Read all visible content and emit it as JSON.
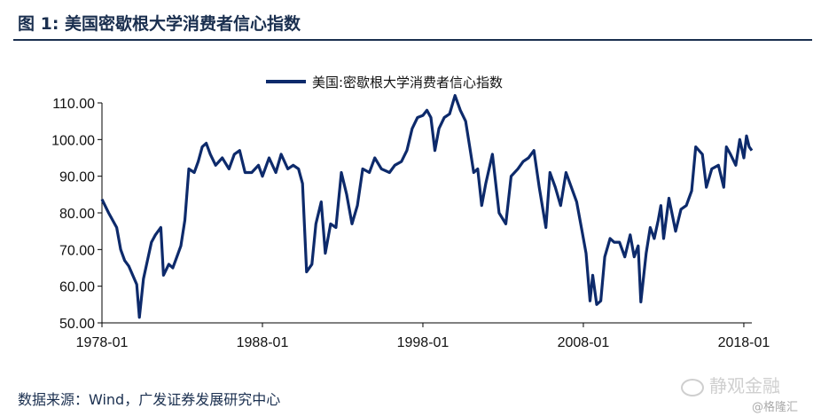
{
  "header": {
    "title": "图 1:  美国密歇根大学消费者信心指数"
  },
  "footer": {
    "source": "数据来源：Wind，广发证券发展研究中心"
  },
  "watermark": {
    "brand": "静观金融",
    "site": "@格隆汇",
    "icon": "wechat-icon"
  },
  "colors": {
    "line": "#0d2a6b",
    "title": "#1a2f4f",
    "axis": "#000000"
  },
  "chart_data": {
    "type": "line",
    "title": "",
    "xlabel": "",
    "ylabel": "",
    "x_ticks": [
      "1978-01",
      "1988-01",
      "1998-01",
      "2008-01",
      "2018-01"
    ],
    "y_ticks": [
      "50.00",
      "60.00",
      "70.00",
      "80.00",
      "90.00",
      "100.00",
      "110.00"
    ],
    "ylim": [
      50,
      110
    ],
    "xlim": [
      "1978-01",
      "2018-07"
    ],
    "legend": {
      "position": "top-center"
    },
    "grid": false,
    "series": [
      {
        "name": "美国:密歇根大学消费者信心指数",
        "points": [
          [
            "1978-01",
            83.7
          ],
          [
            "1978-06",
            80.0
          ],
          [
            "1978-12",
            76.0
          ],
          [
            "1979-03",
            70.0
          ],
          [
            "1979-06",
            67.0
          ],
          [
            "1979-09",
            65.5
          ],
          [
            "1979-12",
            63.0
          ],
          [
            "1980-03",
            60.5
          ],
          [
            "1980-05",
            51.5
          ],
          [
            "1980-08",
            62.0
          ],
          [
            "1980-11",
            67.0
          ],
          [
            "1981-02",
            72.0
          ],
          [
            "1981-05",
            74.0
          ],
          [
            "1981-09",
            76.0
          ],
          [
            "1981-11",
            63.0
          ],
          [
            "1982-03",
            66.0
          ],
          [
            "1982-06",
            65.0
          ],
          [
            "1982-09",
            68.0
          ],
          [
            "1982-12",
            71.0
          ],
          [
            "1983-03",
            78.0
          ],
          [
            "1983-06",
            92.0
          ],
          [
            "1983-10",
            91.0
          ],
          [
            "1984-01",
            94.0
          ],
          [
            "1984-04",
            98.0
          ],
          [
            "1984-07",
            99.0
          ],
          [
            "1984-10",
            96.0
          ],
          [
            "1985-02",
            93.0
          ],
          [
            "1985-07",
            95.0
          ],
          [
            "1985-12",
            92.0
          ],
          [
            "1986-04",
            96.0
          ],
          [
            "1986-08",
            97.0
          ],
          [
            "1986-12",
            91.0
          ],
          [
            "1987-05",
            91.0
          ],
          [
            "1987-10",
            93.0
          ],
          [
            "1988-01",
            90.0
          ],
          [
            "1988-06",
            95.0
          ],
          [
            "1988-11",
            91.0
          ],
          [
            "1989-03",
            96.0
          ],
          [
            "1989-08",
            92.0
          ],
          [
            "1989-12",
            93.0
          ],
          [
            "1990-04",
            92.0
          ],
          [
            "1990-07",
            88.0
          ],
          [
            "1990-10",
            63.9
          ],
          [
            "1991-02",
            66.0
          ],
          [
            "1991-05",
            77.0
          ],
          [
            "1991-09",
            83.0
          ],
          [
            "1991-12",
            69.0
          ],
          [
            "1992-04",
            77.0
          ],
          [
            "1992-08",
            76.0
          ],
          [
            "1992-12",
            91.0
          ],
          [
            "1993-04",
            85.0
          ],
          [
            "1993-08",
            77.0
          ],
          [
            "1993-12",
            82.0
          ],
          [
            "1994-04",
            92.0
          ],
          [
            "1994-09",
            91.0
          ],
          [
            "1995-01",
            95.0
          ],
          [
            "1995-06",
            92.0
          ],
          [
            "1995-12",
            91.0
          ],
          [
            "1996-04",
            93.0
          ],
          [
            "1996-09",
            94.0
          ],
          [
            "1997-01",
            97.0
          ],
          [
            "1997-05",
            103.0
          ],
          [
            "1997-09",
            106.0
          ],
          [
            "1998-01",
            106.6
          ],
          [
            "1998-04",
            108.0
          ],
          [
            "1998-07",
            106.0
          ],
          [
            "1998-10",
            97.0
          ],
          [
            "1999-01",
            103.0
          ],
          [
            "1999-05",
            106.0
          ],
          [
            "1999-09",
            107.0
          ],
          [
            "2000-01",
            112.0
          ],
          [
            "2000-05",
            108.0
          ],
          [
            "2000-09",
            105.0
          ],
          [
            "2000-12",
            98.0
          ],
          [
            "2001-03",
            91.0
          ],
          [
            "2001-06",
            92.0
          ],
          [
            "2001-09",
            82.0
          ],
          [
            "2001-12",
            88.0
          ],
          [
            "2002-05",
            96.0
          ],
          [
            "2002-10",
            80.0
          ],
          [
            "2003-03",
            77.0
          ],
          [
            "2003-07",
            90.0
          ],
          [
            "2003-12",
            92.0
          ],
          [
            "2004-04",
            94.0
          ],
          [
            "2004-08",
            95.0
          ],
          [
            "2004-12",
            97.0
          ],
          [
            "2005-04",
            87.0
          ],
          [
            "2005-09",
            76.0
          ],
          [
            "2005-12",
            91.0
          ],
          [
            "2006-04",
            87.0
          ],
          [
            "2006-08",
            82.0
          ],
          [
            "2006-12",
            91.0
          ],
          [
            "2007-04",
            87.0
          ],
          [
            "2007-08",
            83.0
          ],
          [
            "2007-12",
            75.0
          ],
          [
            "2008-03",
            69.0
          ],
          [
            "2008-06",
            56.0
          ],
          [
            "2008-08",
            63.0
          ],
          [
            "2008-11",
            55.0
          ],
          [
            "2009-02",
            56.0
          ],
          [
            "2009-05",
            68.0
          ],
          [
            "2009-09",
            73.0
          ],
          [
            "2009-12",
            72.0
          ],
          [
            "2010-04",
            72.0
          ],
          [
            "2010-08",
            68.0
          ],
          [
            "2010-12",
            74.0
          ],
          [
            "2011-03",
            68.0
          ],
          [
            "2011-06",
            71.0
          ],
          [
            "2011-08",
            55.7
          ],
          [
            "2011-12",
            69.0
          ],
          [
            "2012-03",
            76.0
          ],
          [
            "2012-06",
            73.0
          ],
          [
            "2012-09",
            78.0
          ],
          [
            "2012-11",
            82.0
          ],
          [
            "2013-01",
            73.0
          ],
          [
            "2013-05",
            84.0
          ],
          [
            "2013-10",
            75.0
          ],
          [
            "2014-02",
            81.0
          ],
          [
            "2014-06",
            82.0
          ],
          [
            "2014-10",
            86.0
          ],
          [
            "2015-01",
            98.0
          ],
          [
            "2015-06",
            96.0
          ],
          [
            "2015-09",
            87.0
          ],
          [
            "2016-01",
            92.0
          ],
          [
            "2016-06",
            93.0
          ],
          [
            "2016-10",
            87.0
          ],
          [
            "2016-12",
            98.0
          ],
          [
            "2017-03",
            96.0
          ],
          [
            "2017-07",
            93.0
          ],
          [
            "2017-10",
            100.0
          ],
          [
            "2018-01",
            95.0
          ],
          [
            "2018-03",
            101.0
          ],
          [
            "2018-05",
            98.0
          ],
          [
            "2018-07",
            97.0
          ]
        ]
      }
    ]
  }
}
